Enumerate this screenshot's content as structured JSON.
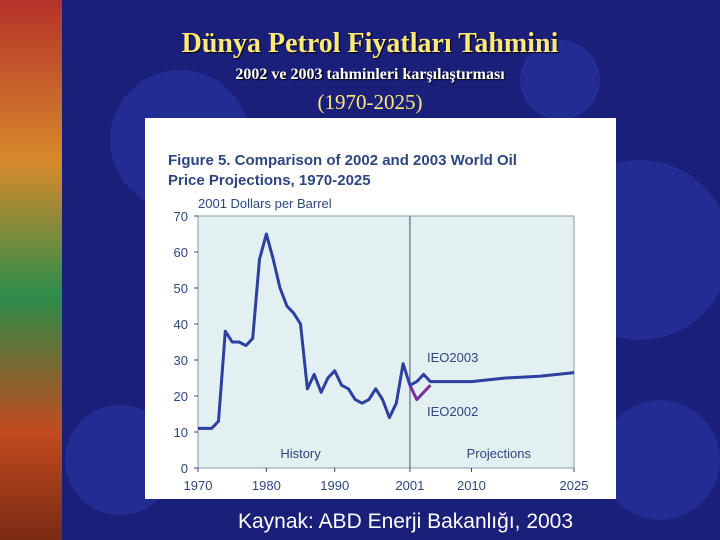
{
  "slide": {
    "title": "Dünya Petrol Fiyatları Tahmini",
    "subtitle": "2002 ve 2003 tahminleri karşılaştırması",
    "range": "(1970-2025)",
    "source": "Kaynak: ABD Enerji Bakanlığı, 2003"
  },
  "colors": {
    "background": "#1a1f7a",
    "title": "#ffe97a",
    "plot_bg": "#e3f0f2",
    "history_line": "#2d3fa0",
    "ieo2003_line": "#2d3fa0",
    "ieo2002_line": "#7a2ea0",
    "label_text": "#2d4680"
  },
  "chart_data": {
    "type": "line",
    "title": "Figure 5.  Comparison of 2002 and 2003 World Oil Price Projections, 1970-2025",
    "title_lines": [
      "Figure 5.  Comparison of 2002 and 2003 World Oil",
      "Price Projections, 1970-2025"
    ],
    "ylabel": "2001 Dollars per Barrel",
    "xlabel": "",
    "xlim": [
      1970,
      2025
    ],
    "ylim": [
      0,
      70
    ],
    "x_ticks": [
      1970,
      1980,
      1990,
      2001,
      2010,
      2025
    ],
    "y_ticks": [
      0,
      10,
      20,
      30,
      40,
      50,
      60,
      70
    ],
    "grid": false,
    "divider_year": 2001,
    "region_labels": {
      "history": "History",
      "projections": "Projections"
    },
    "series": [
      {
        "name": "History",
        "x": [
          1970,
          1971,
          1972,
          1973,
          1974,
          1975,
          1976,
          1977,
          1978,
          1979,
          1980,
          1981,
          1982,
          1983,
          1984,
          1985,
          1986,
          1987,
          1988,
          1989,
          1990,
          1991,
          1992,
          1993,
          1994,
          1995,
          1996,
          1997,
          1998,
          1999,
          2000,
          2001
        ],
        "values": [
          11,
          11,
          11,
          13,
          38,
          35,
          35,
          34,
          36,
          58,
          65,
          58,
          50,
          45,
          43,
          40,
          22,
          26,
          21,
          25,
          27,
          23,
          22,
          19,
          18,
          19,
          22,
          19,
          14,
          18,
          29,
          23
        ]
      },
      {
        "name": "IEO2003",
        "x": [
          2001,
          2002,
          2003,
          2004,
          2005,
          2010,
          2015,
          2020,
          2025
        ],
        "values": [
          23,
          24,
          26,
          24,
          24,
          24,
          25,
          25.5,
          26.5
        ]
      },
      {
        "name": "IEO2002",
        "x": [
          2001,
          2002,
          2003,
          2004
        ],
        "values": [
          23,
          19,
          21,
          23
        ]
      }
    ]
  }
}
